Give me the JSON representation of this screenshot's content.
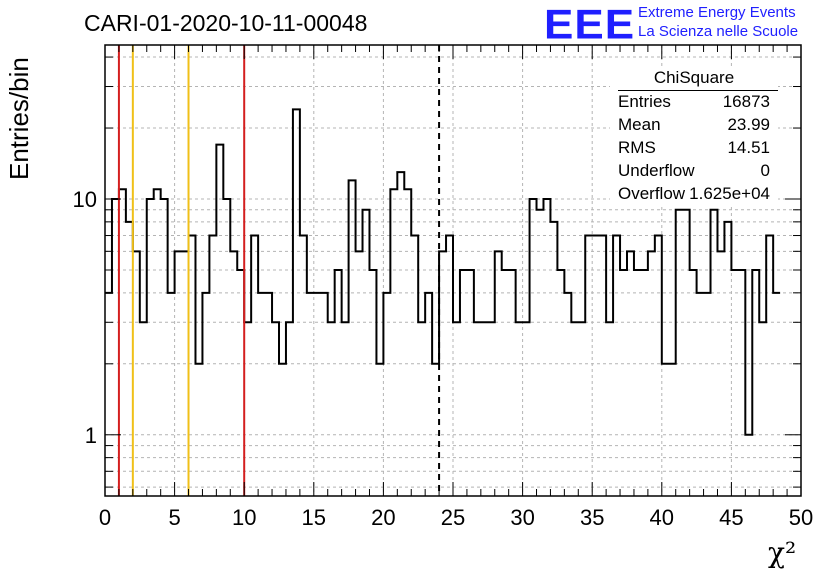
{
  "header": {
    "title": "CARI-01-2020-10-11-00048",
    "logo": "EEE",
    "logo_line1": "Extreme Energy Events",
    "logo_line2": "La Scienza nelle Scuole"
  },
  "stats_box": {
    "title": "ChiSquare",
    "entries_label": "Entries",
    "entries_value": "16873",
    "mean_label": "Mean",
    "mean_value": "23.99",
    "rms_label": "RMS",
    "rms_value": "14.51",
    "underflow_label": "Underflow",
    "underflow_value": "0",
    "overflow_label": "Overflow",
    "overflow_value": "1.625e+04"
  },
  "chart_data": {
    "type": "histogram",
    "title": "CARI-01-2020-10-11-00048",
    "xlabel": "χ²",
    "ylabel": "Entries/bin",
    "xlim": [
      0,
      50
    ],
    "ylim": [
      0.55,
      45
    ],
    "yscale": "log",
    "grid": true,
    "bin_width": 0.5,
    "x_ticks": [
      "0",
      "5",
      "10",
      "15",
      "20",
      "25",
      "30",
      "35",
      "40",
      "45",
      "50"
    ],
    "y_ticks": [
      "1",
      "10"
    ],
    "values": [
      4,
      10,
      11,
      8,
      6,
      3,
      10,
      11,
      10,
      4,
      6,
      6,
      7,
      2,
      4,
      7,
      17,
      10,
      6,
      5,
      3,
      7,
      4,
      4,
      3,
      2,
      3,
      24,
      7,
      4,
      4,
      4,
      3,
      5,
      3,
      12,
      6,
      9,
      5,
      2,
      4,
      11,
      13,
      11,
      7,
      3,
      4,
      2,
      6,
      7,
      3,
      5,
      5,
      3,
      3,
      3,
      6,
      5,
      5,
      3,
      3,
      10,
      9,
      10,
      8,
      5,
      4,
      3,
      3,
      7,
      7,
      7,
      3,
      7,
      5,
      6,
      5,
      5,
      6,
      7,
      2,
      2,
      9,
      9,
      5,
      4,
      4,
      9,
      6,
      8,
      5,
      5,
      1,
      5,
      3,
      7,
      4
    ],
    "vertical_lines": [
      {
        "x": 1,
        "color": "#d41f1f",
        "style": "solid"
      },
      {
        "x": 2,
        "color": "#f0c018",
        "style": "solid"
      },
      {
        "x": 6,
        "color": "#f0c018",
        "style": "solid"
      },
      {
        "x": 10,
        "color": "#d41f1f",
        "style": "solid"
      },
      {
        "x": 24,
        "color": "#000000",
        "style": "dashed"
      }
    ]
  }
}
